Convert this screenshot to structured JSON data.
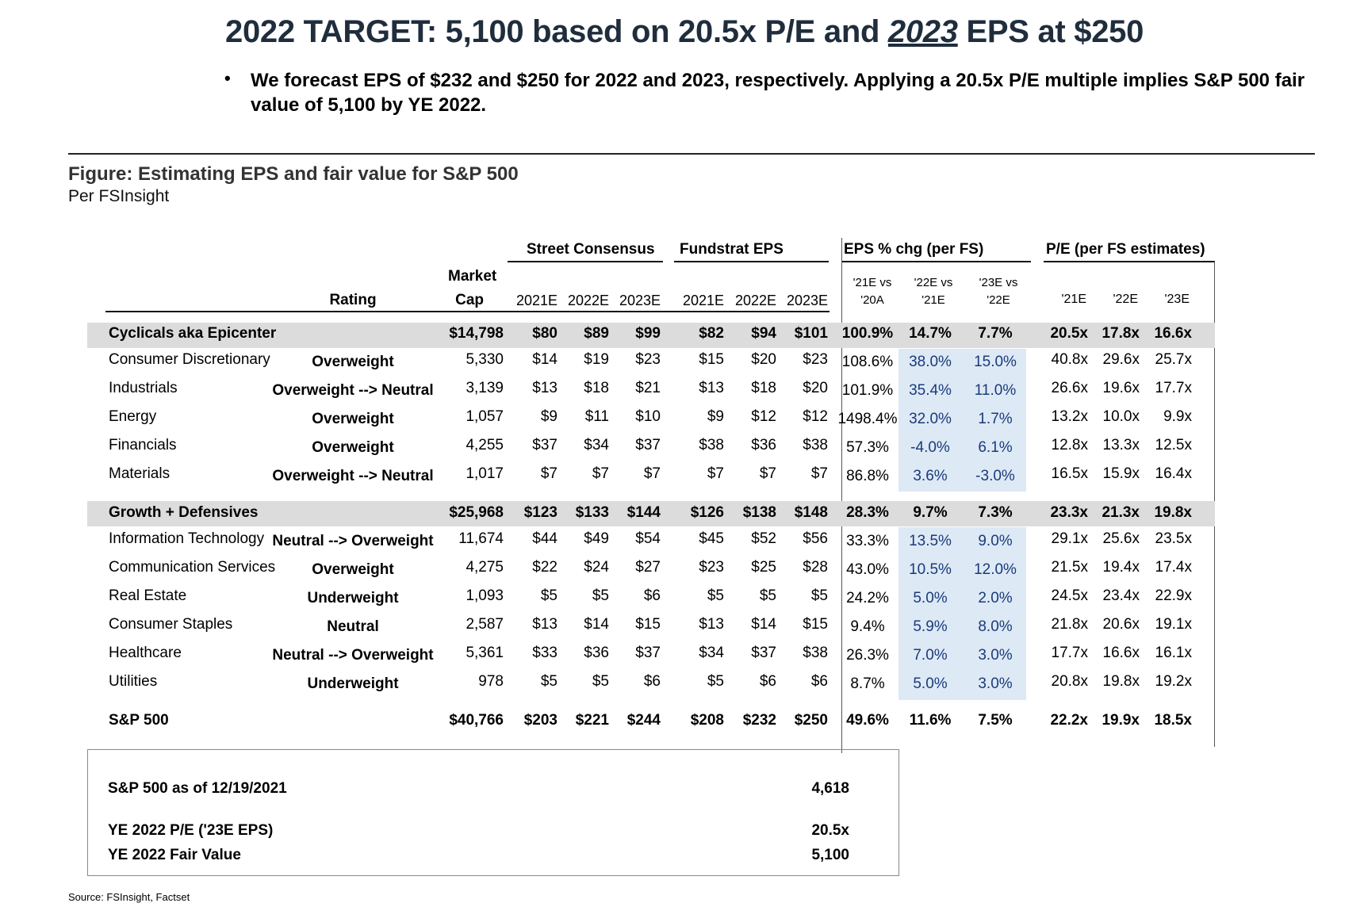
{
  "title": {
    "pre": "2022 TARGET: 5,100 based on 20.5x P/E and ",
    "underlined": "2023",
    "post": " EPS at $250"
  },
  "bullet": "We forecast EPS of $232 and $250 for 2022 and 2023, respectively. Applying a 20.5x P/E multiple implies S&P 500 fair value of 5,100 by YE 2022.",
  "figure_title": "Figure: Estimating EPS and fair value for S&P 500",
  "figure_subtitle": "Per FSInsight",
  "table": {
    "group_headers": {
      "street": "Street Consensus",
      "fundstrat": "Fundstrat EPS",
      "epschg": "EPS % chg (per FS)",
      "pe": "P/E (per FS estimates)"
    },
    "col_headers": {
      "rating": "Rating",
      "market1": "Market",
      "market2": "Cap",
      "s21": "2021E",
      "s22": "2022E",
      "s23": "2023E",
      "f21": "2021E",
      "f22": "2022E",
      "f23": "2023E",
      "c1a": "'21E vs",
      "c1b": "'20A",
      "c2a": "'22E vs",
      "c2b": "'21E",
      "c3a": "'23E vs",
      "c3b": "'22E",
      "p21": "'21E",
      "p22": "'22E",
      "p23": "'23E"
    },
    "rows": [
      {
        "name": "Cyclicals aka Epicenter",
        "rating": "",
        "mcap": "$14,798",
        "s21": "$80",
        "s22": "$89",
        "s23": "$99",
        "f21": "$82",
        "f22": "$94",
        "f23": "$101",
        "c1": "100.9%",
        "c2": "14.7%",
        "c3": "7.7%",
        "p21": "20.5x",
        "p22": "17.8x",
        "p23": "16.6x"
      },
      {
        "name": "Consumer Discretionary",
        "rating": "Overweight",
        "mcap": "5,330",
        "s21": "$14",
        "s22": "$19",
        "s23": "$23",
        "f21": "$15",
        "f22": "$20",
        "f23": "$23",
        "c1": "108.6%",
        "c2": "38.0%",
        "c3": "15.0%",
        "p21": "40.8x",
        "p22": "29.6x",
        "p23": "25.7x"
      },
      {
        "name": "Industrials",
        "rating": "Overweight --> Neutral",
        "mcap": "3,139",
        "s21": "$13",
        "s22": "$18",
        "s23": "$21",
        "f21": "$13",
        "f22": "$18",
        "f23": "$20",
        "c1": "101.9%",
        "c2": "35.4%",
        "c3": "11.0%",
        "p21": "26.6x",
        "p22": "19.6x",
        "p23": "17.7x"
      },
      {
        "name": "Energy",
        "rating": "Overweight",
        "mcap": "1,057",
        "s21": "$9",
        "s22": "$11",
        "s23": "$10",
        "f21": "$9",
        "f22": "$12",
        "f23": "$12",
        "c1": "1498.4%",
        "c2": "32.0%",
        "c3": "1.7%",
        "p21": "13.2x",
        "p22": "10.0x",
        "p23": "9.9x"
      },
      {
        "name": "Financials",
        "rating": "Overweight",
        "mcap": "4,255",
        "s21": "$37",
        "s22": "$34",
        "s23": "$37",
        "f21": "$38",
        "f22": "$36",
        "f23": "$38",
        "c1": "57.3%",
        "c2": "-4.0%",
        "c3": "6.1%",
        "p21": "12.8x",
        "p22": "13.3x",
        "p23": "12.5x"
      },
      {
        "name": "Materials",
        "rating": "Overweight --> Neutral",
        "mcap": "1,017",
        "s21": "$7",
        "s22": "$7",
        "s23": "$7",
        "f21": "$7",
        "f22": "$7",
        "f23": "$7",
        "c1": "86.8%",
        "c2": "3.6%",
        "c3": "-3.0%",
        "p21": "16.5x",
        "p22": "15.9x",
        "p23": "16.4x"
      },
      {
        "name": "Growth + Defensives",
        "rating": "",
        "mcap": "$25,968",
        "s21": "$123",
        "s22": "$133",
        "s23": "$144",
        "f21": "$126",
        "f22": "$138",
        "f23": "$148",
        "c1": "28.3%",
        "c2": "9.7%",
        "c3": "7.3%",
        "p21": "23.3x",
        "p22": "21.3x",
        "p23": "19.8x"
      },
      {
        "name": "Information Technology",
        "rating": "Neutral --> Overweight",
        "mcap": "11,674",
        "s21": "$44",
        "s22": "$49",
        "s23": "$54",
        "f21": "$45",
        "f22": "$52",
        "f23": "$56",
        "c1": "33.3%",
        "c2": "13.5%",
        "c3": "9.0%",
        "p21": "29.1x",
        "p22": "25.6x",
        "p23": "23.5x"
      },
      {
        "name": "Communication Services",
        "rating": "Overweight",
        "mcap": "4,275",
        "s21": "$22",
        "s22": "$24",
        "s23": "$27",
        "f21": "$23",
        "f22": "$25",
        "f23": "$28",
        "c1": "43.0%",
        "c2": "10.5%",
        "c3": "12.0%",
        "p21": "21.5x",
        "p22": "19.4x",
        "p23": "17.4x"
      },
      {
        "name": "Real Estate",
        "rating": "Underweight",
        "mcap": "1,093",
        "s21": "$5",
        "s22": "$5",
        "s23": "$6",
        "f21": "$5",
        "f22": "$5",
        "f23": "$5",
        "c1": "24.2%",
        "c2": "5.0%",
        "c3": "2.0%",
        "p21": "24.5x",
        "p22": "23.4x",
        "p23": "22.9x"
      },
      {
        "name": "Consumer Staples",
        "rating": "Neutral",
        "mcap": "2,587",
        "s21": "$13",
        "s22": "$14",
        "s23": "$15",
        "f21": "$13",
        "f22": "$14",
        "f23": "$15",
        "c1": "9.4%",
        "c2": "5.9%",
        "c3": "8.0%",
        "p21": "21.8x",
        "p22": "20.6x",
        "p23": "19.1x"
      },
      {
        "name": "Healthcare",
        "rating": "Neutral --> Overweight",
        "mcap": "5,361",
        "s21": "$33",
        "s22": "$36",
        "s23": "$37",
        "f21": "$34",
        "f22": "$37",
        "f23": "$38",
        "c1": "26.3%",
        "c2": "7.0%",
        "c3": "3.0%",
        "p21": "17.7x",
        "p22": "16.6x",
        "p23": "16.1x"
      },
      {
        "name": "Utilities",
        "rating": "Underweight",
        "mcap": "978",
        "s21": "$5",
        "s22": "$5",
        "s23": "$6",
        "f21": "$5",
        "f22": "$6",
        "f23": "$6",
        "c1": "8.7%",
        "c2": "5.0%",
        "c3": "3.0%",
        "p21": "20.8x",
        "p22": "19.8x",
        "p23": "19.2x"
      },
      {
        "name": "S&P 500",
        "rating": "",
        "mcap": "$40,766",
        "s21": "$203",
        "s22": "$221",
        "s23": "$244",
        "f21": "$208",
        "f22": "$232",
        "f23": "$250",
        "c1": "49.6%",
        "c2": "11.6%",
        "c3": "7.5%",
        "p21": "22.2x",
        "p22": "19.9x",
        "p23": "18.5x"
      }
    ]
  },
  "summary": {
    "asof_label": "S&P 500 as of 12/19/2021",
    "asof_value": "4,618",
    "pe_label": "YE 2022 P/E ('23E EPS)",
    "pe_value": "20.5x",
    "fv_label": "YE 2022 Fair Value",
    "fv_value": "5,100"
  },
  "source": "Source: FSInsight, Factset",
  "colors": {
    "title": "#1f2d3d",
    "shade": "#dcdcdc",
    "blue_band": "#dde9f5",
    "blue_text": "#1a3a7a"
  }
}
